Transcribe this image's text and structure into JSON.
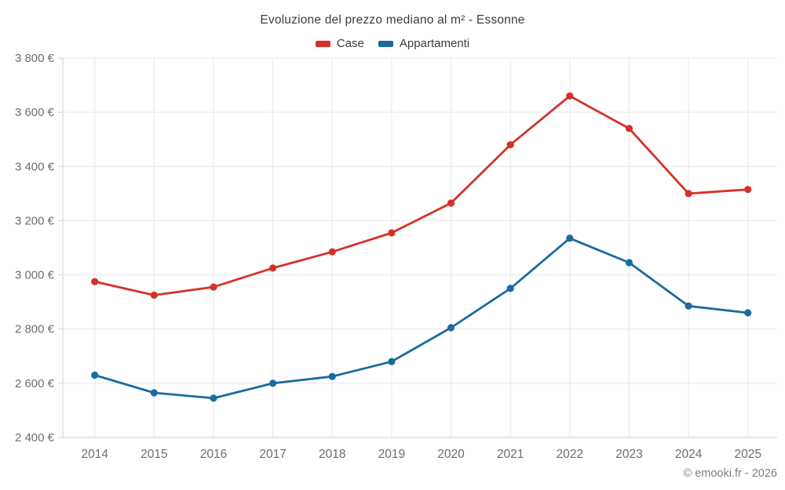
{
  "chart_data": {
    "type": "line",
    "title": "Evoluzione del prezzo mediano al m² - Essonne",
    "categories": [
      "2014",
      "2015",
      "2016",
      "2017",
      "2018",
      "2019",
      "2020",
      "2021",
      "2022",
      "2023",
      "2024",
      "2025"
    ],
    "series": [
      {
        "name": "Case",
        "color": "#d5312a",
        "values": [
          2975,
          2925,
          2955,
          3025,
          3085,
          3155,
          3265,
          3480,
          3660,
          3540,
          3300,
          3315
        ]
      },
      {
        "name": "Appartamenti",
        "color": "#1a6ba0",
        "values": [
          2630,
          2565,
          2545,
          2600,
          2625,
          2680,
          2805,
          2950,
          3135,
          3045,
          2885,
          2860
        ]
      }
    ],
    "y_axis": {
      "range": [
        2400,
        3800
      ],
      "tick_values": [
        2400,
        2600,
        2800,
        3000,
        3200,
        3400,
        3600,
        3800
      ],
      "tick_labels": [
        "2 400 €",
        "2 600 €",
        "2 800 €",
        "3 000 €",
        "3 200 €",
        "3 400 €",
        "3 600 €",
        "3 800 €"
      ]
    },
    "grid": true,
    "legend_position": "top",
    "colors": {
      "grid_line": "#e8e8e8",
      "axis_line": "#cfcfcf",
      "tick_label": "#6e6e6e",
      "title_text": "#3d3d3d",
      "footer_text": "#7d7d7d"
    }
  },
  "footer": {
    "text": "© emooki.fr - 2026"
  }
}
